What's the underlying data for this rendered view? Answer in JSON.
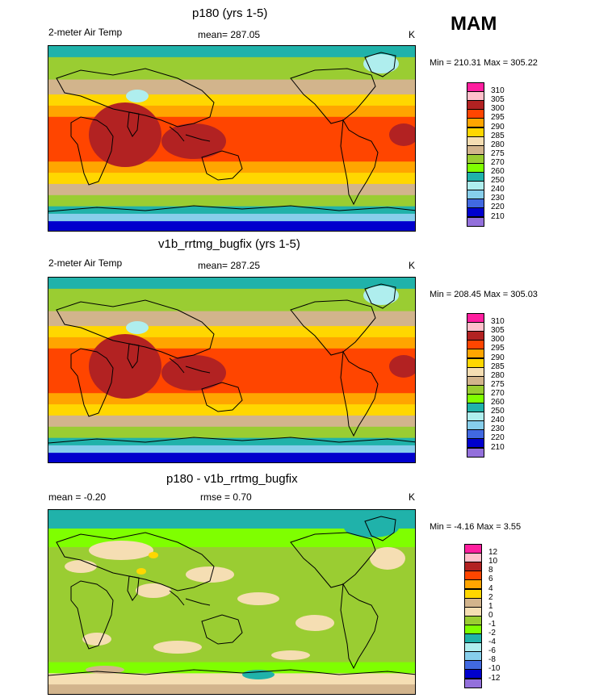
{
  "season": "MAM",
  "units": "K",
  "panels": [
    {
      "title": "p180 (yrs 1-5)",
      "left_label": "2-meter Air Temp",
      "mean_label": "mean= 287.05",
      "rmse_label": "",
      "units": "K",
      "minmax": "Min = 210.31 Max = 305.22",
      "kind": "abs",
      "legend": {
        "labels": [
          "310",
          "305",
          "300",
          "295",
          "290",
          "285",
          "280",
          "275",
          "270",
          "260",
          "250",
          "240",
          "230",
          "220",
          "210"
        ],
        "colors": [
          "#ff1f9f",
          "#ffc0cb",
          "#b22222",
          "#ff4500",
          "#ffa500",
          "#ffd700",
          "#f5deb3",
          "#d2b48c",
          "#9acd32",
          "#7fff00",
          "#20b2aa",
          "#afeeee",
          "#87ceeb",
          "#4169e1",
          "#0000cd",
          "#9370db"
        ]
      }
    },
    {
      "title": "v1b_rrtmg_bugfix (yrs 1-5)",
      "left_label": "2-meter Air Temp",
      "mean_label": "mean= 287.25",
      "rmse_label": "",
      "units": "K",
      "minmax": "Min = 208.45 Max = 305.03",
      "kind": "abs",
      "legend": {
        "labels": [
          "310",
          "305",
          "300",
          "295",
          "290",
          "285",
          "280",
          "275",
          "270",
          "260",
          "250",
          "240",
          "230",
          "220",
          "210"
        ],
        "colors": [
          "#ff1f9f",
          "#ffc0cb",
          "#b22222",
          "#ff4500",
          "#ffa500",
          "#ffd700",
          "#f5deb3",
          "#d2b48c",
          "#9acd32",
          "#7fff00",
          "#20b2aa",
          "#afeeee",
          "#87ceeb",
          "#4169e1",
          "#0000cd",
          "#9370db"
        ]
      }
    },
    {
      "title": "p180 - v1b_rrtmg_bugfix",
      "left_label": "mean =  -0.20",
      "mean_label": "",
      "rmse_label": "rmse =   0.70",
      "units": "K",
      "minmax": "Min =  -4.16 Max =   3.55",
      "kind": "diff",
      "legend": {
        "labels": [
          "12",
          "10",
          "8",
          "6",
          "4",
          "2",
          "1",
          "0",
          "-1",
          "-2",
          "-4",
          "-6",
          "-8",
          "-10",
          "-12"
        ],
        "colors": [
          "#ff1f9f",
          "#ffc0cb",
          "#b22222",
          "#ff4500",
          "#ffa500",
          "#ffd700",
          "#d2b48c",
          "#f5deb3",
          "#9acd32",
          "#7fff00",
          "#20b2aa",
          "#afeeee",
          "#87ceeb",
          "#4169e1",
          "#0000cd",
          "#9370db"
        ]
      }
    }
  ]
}
